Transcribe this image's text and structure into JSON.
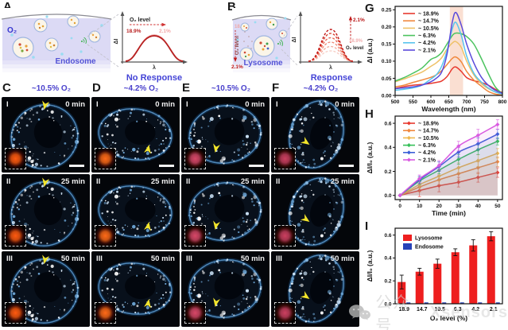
{
  "panelA": {
    "letter": "A",
    "o2": "O₂",
    "organelle": "Endosome",
    "inset": {
      "ylabel": "ΔI",
      "xlabel": "λ",
      "o2_level": "O₂ level",
      "high": "18.9%",
      "low": "2.1%",
      "caption": "No Response"
    }
  },
  "panelB": {
    "letter": "B",
    "organelle": "Lysosome",
    "axis": {
      "label": "O₂ level",
      "high": "18.9%",
      "low": "2.1%"
    },
    "inset": {
      "ylabel": "ΔI",
      "xlabel": "λ",
      "o2_level": "O₂ level",
      "high": "18.9%",
      "low": "2.1%",
      "caption": "Response"
    }
  },
  "panelG": {
    "letter": "G"
  },
  "panelH": {
    "letter": "H"
  },
  "panelI": {
    "letter": "I"
  },
  "microscopy": {
    "columns": [
      {
        "letter": "C",
        "header": "~10.5% O₂"
      },
      {
        "letter": "D",
        "header": "~4.2% O₂"
      },
      {
        "letter": "E",
        "header": "~10.5% O₂"
      },
      {
        "letter": "F",
        "header": "~4.2% O₂"
      }
    ],
    "rows": [
      {
        "numeral": "I",
        "time": "0 min"
      },
      {
        "numeral": "II",
        "time": "25 min"
      },
      {
        "numeral": "III",
        "time": "50 min"
      }
    ]
  },
  "watermark": {
    "cjk": "公众号",
    "latin": "Xsensors"
  },
  "chart_data": [
    {
      "panel": "G",
      "type": "line",
      "title": "",
      "xlabel": "Wavelength (nm)",
      "ylabel": "ΔI (a.u.)",
      "xlim": [
        500,
        800
      ],
      "ylim": [
        0,
        0.26
      ],
      "xticks": [
        500,
        550,
        600,
        650,
        700,
        750,
        800
      ],
      "yticks": [
        0.0,
        0.05,
        0.1,
        0.15,
        0.2,
        0.25
      ],
      "legend_position": "top-left",
      "grid": false,
      "highlight_band": {
        "x0": 653,
        "x1": 690,
        "color": "#f6c9b4"
      },
      "x": [
        500,
        525,
        550,
        575,
        600,
        615,
        630,
        645,
        660,
        670,
        685,
        700,
        720,
        740,
        760,
        780,
        800
      ],
      "series": [
        {
          "name": "~ 18.9%",
          "color": "#e8392e",
          "values": [
            0.02,
            0.026,
            0.03,
            0.032,
            0.035,
            0.038,
            0.042,
            0.055,
            0.078,
            0.083,
            0.07,
            0.052,
            0.043,
            0.038,
            0.03,
            0.018,
            0.008
          ]
        },
        {
          "name": "~ 14.7%",
          "color": "#f0883e",
          "values": [
            0.025,
            0.03,
            0.038,
            0.045,
            0.053,
            0.06,
            0.072,
            0.09,
            0.108,
            0.112,
            0.098,
            0.07,
            0.045,
            0.028,
            0.012,
            0.004,
            0.001
          ]
        },
        {
          "name": "~ 10.5%",
          "color": "#eec168",
          "values": [
            0.04,
            0.048,
            0.058,
            0.068,
            0.085,
            0.095,
            0.11,
            0.135,
            0.153,
            0.157,
            0.14,
            0.1,
            0.06,
            0.035,
            0.02,
            0.01,
            0.005
          ]
        },
        {
          "name": "~ 6.3%",
          "color": "#4cc35f",
          "values": [
            0.042,
            0.052,
            0.065,
            0.08,
            0.105,
            0.112,
            0.125,
            0.15,
            0.175,
            0.182,
            0.18,
            0.172,
            0.15,
            0.11,
            0.065,
            0.025,
            0.005
          ]
        },
        {
          "name": "~ 4.2%",
          "color": "#58c4ee",
          "values": [
            0.015,
            0.018,
            0.022,
            0.03,
            0.048,
            0.06,
            0.085,
            0.13,
            0.195,
            0.213,
            0.175,
            0.115,
            0.065,
            0.04,
            0.022,
            0.01,
            0.004
          ]
        },
        {
          "name": "~ 2.1%",
          "color": "#5b4bdb",
          "values": [
            0.02,
            0.022,
            0.025,
            0.03,
            0.04,
            0.05,
            0.068,
            0.12,
            0.215,
            0.242,
            0.205,
            0.15,
            0.095,
            0.055,
            0.03,
            0.015,
            0.006
          ]
        }
      ]
    },
    {
      "panel": "H",
      "type": "line",
      "title": "",
      "xlabel": "Time (min)",
      "ylabel": "ΔI/I₀ (a.u.)",
      "xlim": [
        -2.5,
        52.5
      ],
      "ylim": [
        -0.035,
        0.66
      ],
      "xticks": [
        0,
        10,
        20,
        30,
        40,
        50
      ],
      "yticks": [
        0.0,
        0.2,
        0.4,
        0.6
      ],
      "legend_position": "top-left",
      "grid": false,
      "marker": "diamond",
      "x": [
        0,
        10,
        20,
        30,
        40,
        50
      ],
      "series": [
        {
          "name": "~ 18.9%",
          "color": "#e8392e",
          "values": [
            0,
            0.04,
            0.08,
            0.11,
            0.15,
            0.19
          ],
          "errors": [
            0,
            0.05,
            0.05,
            0.04,
            0.04,
            0.04
          ]
        },
        {
          "name": "~ 14.7%",
          "color": "#f0883e",
          "values": [
            0,
            0.07,
            0.13,
            0.18,
            0.23,
            0.28
          ],
          "errors": [
            0,
            0.04,
            0.04,
            0.05,
            0.05,
            0.04
          ]
        },
        {
          "name": "~ 10.5%",
          "color": "#efb84e",
          "values": [
            0,
            0.09,
            0.16,
            0.23,
            0.29,
            0.35
          ],
          "errors": [
            0,
            0.03,
            0.04,
            0.04,
            0.05,
            0.04
          ]
        },
        {
          "name": "~ 6.3%",
          "color": "#35bf58",
          "values": [
            0,
            0.12,
            0.21,
            0.3,
            0.38,
            0.45
          ],
          "errors": [
            0,
            0.03,
            0.03,
            0.04,
            0.04,
            0.03
          ]
        },
        {
          "name": "~ 4.2%",
          "color": "#3a5fd7",
          "values": [
            0,
            0.13,
            0.24,
            0.36,
            0.43,
            0.51
          ],
          "errors": [
            0,
            0.03,
            0.04,
            0.04,
            0.05,
            0.04
          ]
        },
        {
          "name": "~ 2.1%",
          "color": "#d95ae0",
          "values": [
            0,
            0.14,
            0.25,
            0.41,
            0.5,
            0.59
          ],
          "errors": [
            0,
            0.03,
            0.04,
            0.04,
            0.05,
            0.04
          ]
        }
      ]
    },
    {
      "panel": "I",
      "type": "bar",
      "title": "",
      "xlabel": "O₂ level (%)",
      "ylabel": "ΔI/I₀ (a.u.)",
      "categories": [
        "18.9",
        "14.7",
        "10.5",
        "6.3",
        "4.2",
        "2.1"
      ],
      "ylim": [
        0,
        0.66
      ],
      "yticks": [
        0.0,
        0.2,
        0.4,
        0.6
      ],
      "legend_position": "top-left",
      "grid": false,
      "series": [
        {
          "name": "Lysosome",
          "color": "#ee1f1f",
          "values": [
            0.19,
            0.28,
            0.35,
            0.45,
            0.51,
            0.59
          ],
          "errors": [
            0.06,
            0.03,
            0.04,
            0.03,
            0.05,
            0.04
          ]
        },
        {
          "name": "Endosome",
          "color": "#2743b8",
          "values": [
            0.012,
            0.012,
            0.012,
            0.012,
            0.012,
            0.012
          ],
          "errors": [
            0.006,
            0.006,
            0.006,
            0.006,
            0.006,
            0.006
          ]
        }
      ]
    }
  ]
}
